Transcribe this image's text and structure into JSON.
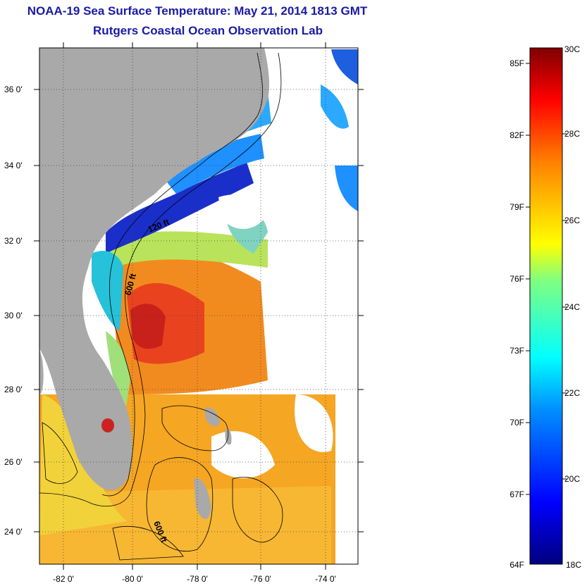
{
  "title": "NOAA-19 Sea Surface Temperature:  May 21, 2014 1813 GMT",
  "subtitle": "Rutgers Coastal Ocean Observation Lab",
  "lat_labels": [
    "36 0'",
    "34 0'",
    "32 0'",
    "30 0'",
    "28 0'",
    "26 0'",
    "24 0'"
  ],
  "lon_labels": [
    "-82 0'",
    "-80 0'",
    "-78 0'",
    "-76 0'",
    "-74 0'"
  ],
  "contour_labels": [
    "120 ft",
    "600 ft",
    "600 ft"
  ],
  "colorbar": {
    "fahrenheit": [
      "85F",
      "82F",
      "79F",
      "76F",
      "73F",
      "70F",
      "67F",
      "64F"
    ],
    "celsius": [
      "30C",
      "28C",
      "26C",
      "24C",
      "22C",
      "20C",
      "18C"
    ],
    "range_c": [
      18,
      30
    ]
  },
  "colors": {
    "land": "#a9a9a9",
    "title": "#1a1aa6",
    "cold": "#00008f",
    "warm": "#8b0000"
  }
}
